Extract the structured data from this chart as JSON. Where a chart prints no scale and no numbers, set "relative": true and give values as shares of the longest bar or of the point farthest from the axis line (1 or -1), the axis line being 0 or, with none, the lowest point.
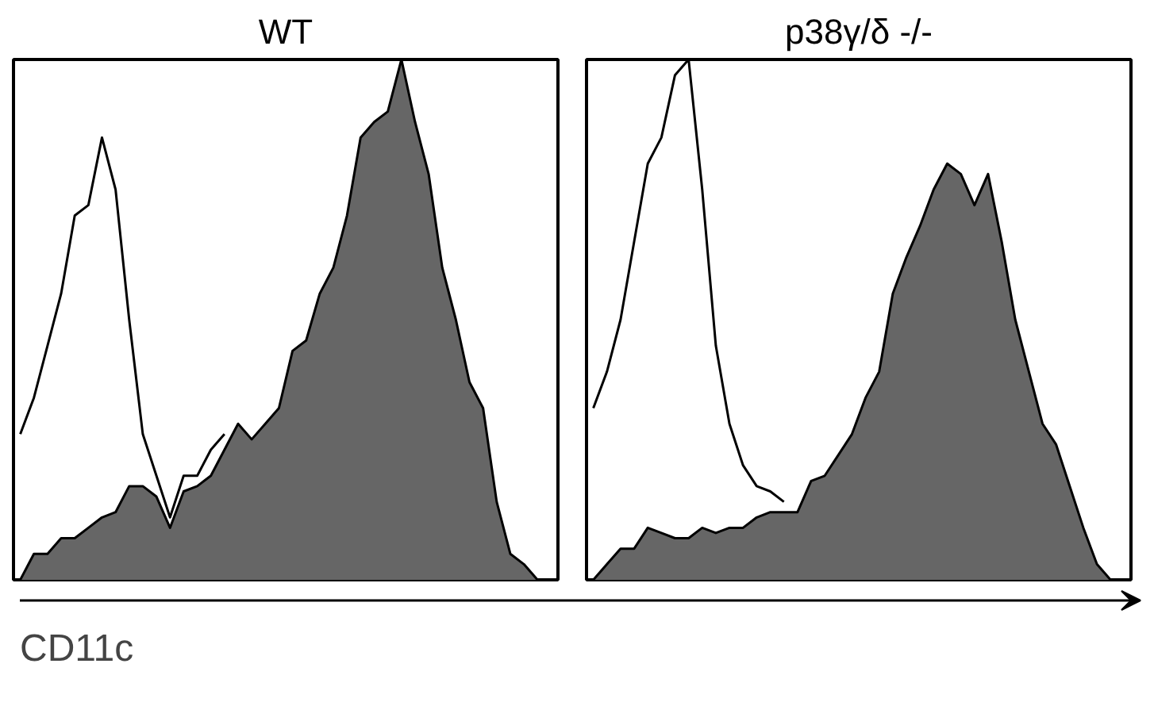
{
  "chart_data": [
    {
      "type": "area",
      "title": "WT",
      "xlabel": "CD11c",
      "relative": true,
      "categories": [
        null,
        null,
        null,
        null,
        null,
        null,
        null,
        null,
        null,
        null,
        null,
        null,
        null,
        null,
        null,
        null,
        null,
        null,
        null,
        null,
        null,
        null,
        null,
        null,
        null,
        null,
        null,
        null,
        null,
        null,
        null,
        null,
        null,
        null,
        null,
        null,
        null,
        null,
        null,
        null
      ],
      "series": [
        {
          "color": "#666666",
          "values": [
            0,
            0.05,
            0.05,
            0.08,
            0.08,
            0.1,
            0.12,
            0.13,
            0.18,
            0.18,
            0.16,
            0.1,
            0.17,
            0.18,
            0.2,
            0.25,
            0.3,
            0.27,
            0.3,
            0.33,
            0.44,
            0.46,
            0.55,
            0.6,
            0.7,
            0.85,
            0.88,
            0.9,
            1.0,
            0.88,
            0.78,
            0.6,
            0.5,
            0.38,
            0.33,
            0.15,
            0.05,
            0.03,
            0,
            0
          ]
        },
        {
          "type": "line",
          "color": "#000000",
          "values": [
            0.28,
            0.35,
            0.45,
            0.55,
            0.7,
            0.72,
            0.85,
            0.75,
            0.5,
            0.28,
            0.2,
            0.12,
            0.2,
            0.2,
            0.25,
            0.28,
            null,
            null,
            null,
            null,
            null,
            null,
            null,
            null,
            null,
            null,
            null,
            null,
            null,
            null,
            null,
            null,
            null,
            null,
            null,
            null,
            null,
            null,
            null,
            null
          ]
        }
      ]
    },
    {
      "type": "area",
      "title": "p38γ/δ -/-",
      "relative": true,
      "categories": [
        null,
        null,
        null,
        null,
        null,
        null,
        null,
        null,
        null,
        null,
        null,
        null,
        null,
        null,
        null,
        null,
        null,
        null,
        null,
        null,
        null,
        null,
        null,
        null,
        null,
        null,
        null,
        null,
        null,
        null,
        null,
        null,
        null,
        null,
        null,
        null,
        null,
        null,
        null,
        null
      ],
      "series": [
        {
          "color": "#666666",
          "values": [
            0,
            0.03,
            0.06,
            0.06,
            0.1,
            0.09,
            0.08,
            0.08,
            0.1,
            0.09,
            0.1,
            0.1,
            0.12,
            0.13,
            0.13,
            0.13,
            0.19,
            0.2,
            0.24,
            0.28,
            0.35,
            0.4,
            0.55,
            0.62,
            0.68,
            0.75,
            0.8,
            0.78,
            0.72,
            0.78,
            0.65,
            0.5,
            0.4,
            0.3,
            0.26,
            0.18,
            0.1,
            0.03,
            0,
            0
          ]
        },
        {
          "type": "line",
          "color": "#000000",
          "values": [
            0.33,
            0.4,
            0.5,
            0.65,
            0.8,
            0.85,
            0.97,
            1.0,
            0.75,
            0.45,
            0.3,
            0.22,
            0.18,
            0.17,
            0.15,
            null,
            null,
            null,
            null,
            null,
            null,
            null,
            null,
            null,
            null,
            null,
            null,
            null,
            null,
            null,
            null,
            null,
            null,
            null,
            null,
            null,
            null,
            null,
            null,
            null
          ]
        }
      ]
    }
  ]
}
